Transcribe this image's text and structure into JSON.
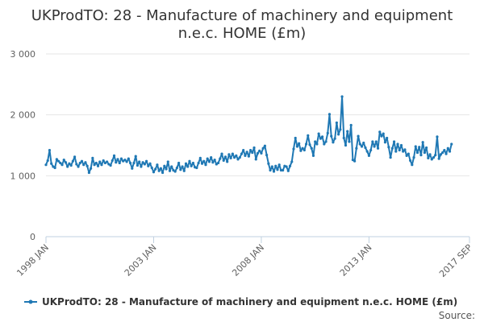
{
  "chart_data": {
    "type": "line",
    "title_lines": [
      "UKProdTO: 28 - Manufacture of machinery and equipment",
      "n.e.c. HOME (£m)"
    ],
    "xlabel": "",
    "ylabel": "",
    "x_start": "1998-01",
    "x_end": "2017-09",
    "x_ticks": [
      {
        "date": "1998-01",
        "label": "1998 JAN"
      },
      {
        "date": "2003-01",
        "label": "2003 JAN"
      },
      {
        "date": "2008-01",
        "label": "2008 JAN"
      },
      {
        "date": "2013-01",
        "label": "2013 JAN"
      },
      {
        "date": "2017-09",
        "label": "2017 SEP"
      }
    ],
    "y_ticks": [
      {
        "value": 0,
        "label": "0"
      },
      {
        "value": 1000,
        "label": "1 000"
      },
      {
        "value": 2000,
        "label": "2 000"
      },
      {
        "value": 3000,
        "label": "3 000"
      }
    ],
    "ylim": [
      0,
      3000
    ],
    "grid": true,
    "legend_position": "bottom",
    "series": [
      {
        "name": "UKProdTO: 28 - Manufacture of machinery and equipment n.e.c. HOME (£m)",
        "color": "#1f78b4",
        "values": [
          1180,
          1250,
          1420,
          1200,
          1150,
          1130,
          1270,
          1240,
          1210,
          1180,
          1260,
          1220,
          1150,
          1200,
          1170,
          1240,
          1310,
          1190,
          1150,
          1210,
          1240,
          1180,
          1220,
          1160,
          1050,
          1120,
          1290,
          1180,
          1210,
          1160,
          1230,
          1180,
          1250,
          1210,
          1230,
          1190,
          1170,
          1250,
          1330,
          1220,
          1270,
          1210,
          1280,
          1240,
          1260,
          1230,
          1280,
          1210,
          1120,
          1210,
          1320,
          1170,
          1230,
          1150,
          1220,
          1190,
          1240,
          1160,
          1200,
          1130,
          1060,
          1110,
          1180,
          1080,
          1120,
          1050,
          1160,
          1110,
          1230,
          1080,
          1150,
          1090,
          1070,
          1130,
          1210,
          1100,
          1150,
          1080,
          1200,
          1150,
          1240,
          1160,
          1210,
          1140,
          1130,
          1210,
          1290,
          1200,
          1240,
          1180,
          1280,
          1230,
          1300,
          1220,
          1260,
          1190,
          1210,
          1280,
          1360,
          1250,
          1310,
          1230,
          1350,
          1290,
          1360,
          1300,
          1330,
          1270,
          1300,
          1360,
          1420,
          1330,
          1390,
          1320,
          1420,
          1380,
          1460,
          1270,
          1370,
          1410,
          1370,
          1450,
          1490,
          1340,
          1200,
          1090,
          1150,
          1070,
          1160,
          1100,
          1180,
          1090,
          1090,
          1160,
          1150,
          1080,
          1160,
          1230,
          1440,
          1620,
          1480,
          1530,
          1410,
          1450,
          1420,
          1520,
          1660,
          1510,
          1450,
          1330,
          1560,
          1520,
          1690,
          1610,
          1640,
          1520,
          1560,
          1700,
          2010,
          1650,
          1550,
          1610,
          1870,
          1680,
          1760,
          2300,
          1620,
          1500,
          1730,
          1560,
          1830,
          1260,
          1240,
          1450,
          1650,
          1520,
          1480,
          1540,
          1460,
          1400,
          1330,
          1420,
          1560,
          1480,
          1560,
          1450,
          1720,
          1650,
          1690,
          1550,
          1620,
          1470,
          1300,
          1450,
          1560,
          1400,
          1520,
          1420,
          1500,
          1400,
          1430,
          1330,
          1360,
          1250,
          1180,
          1300,
          1480,
          1380,
          1470,
          1340,
          1550,
          1380,
          1460,
          1290,
          1350,
          1270,
          1300,
          1340,
          1640,
          1280,
          1350,
          1380,
          1420,
          1360,
          1450,
          1400,
          1520
        ]
      }
    ]
  },
  "credits": {
    "text": "Source:"
  }
}
